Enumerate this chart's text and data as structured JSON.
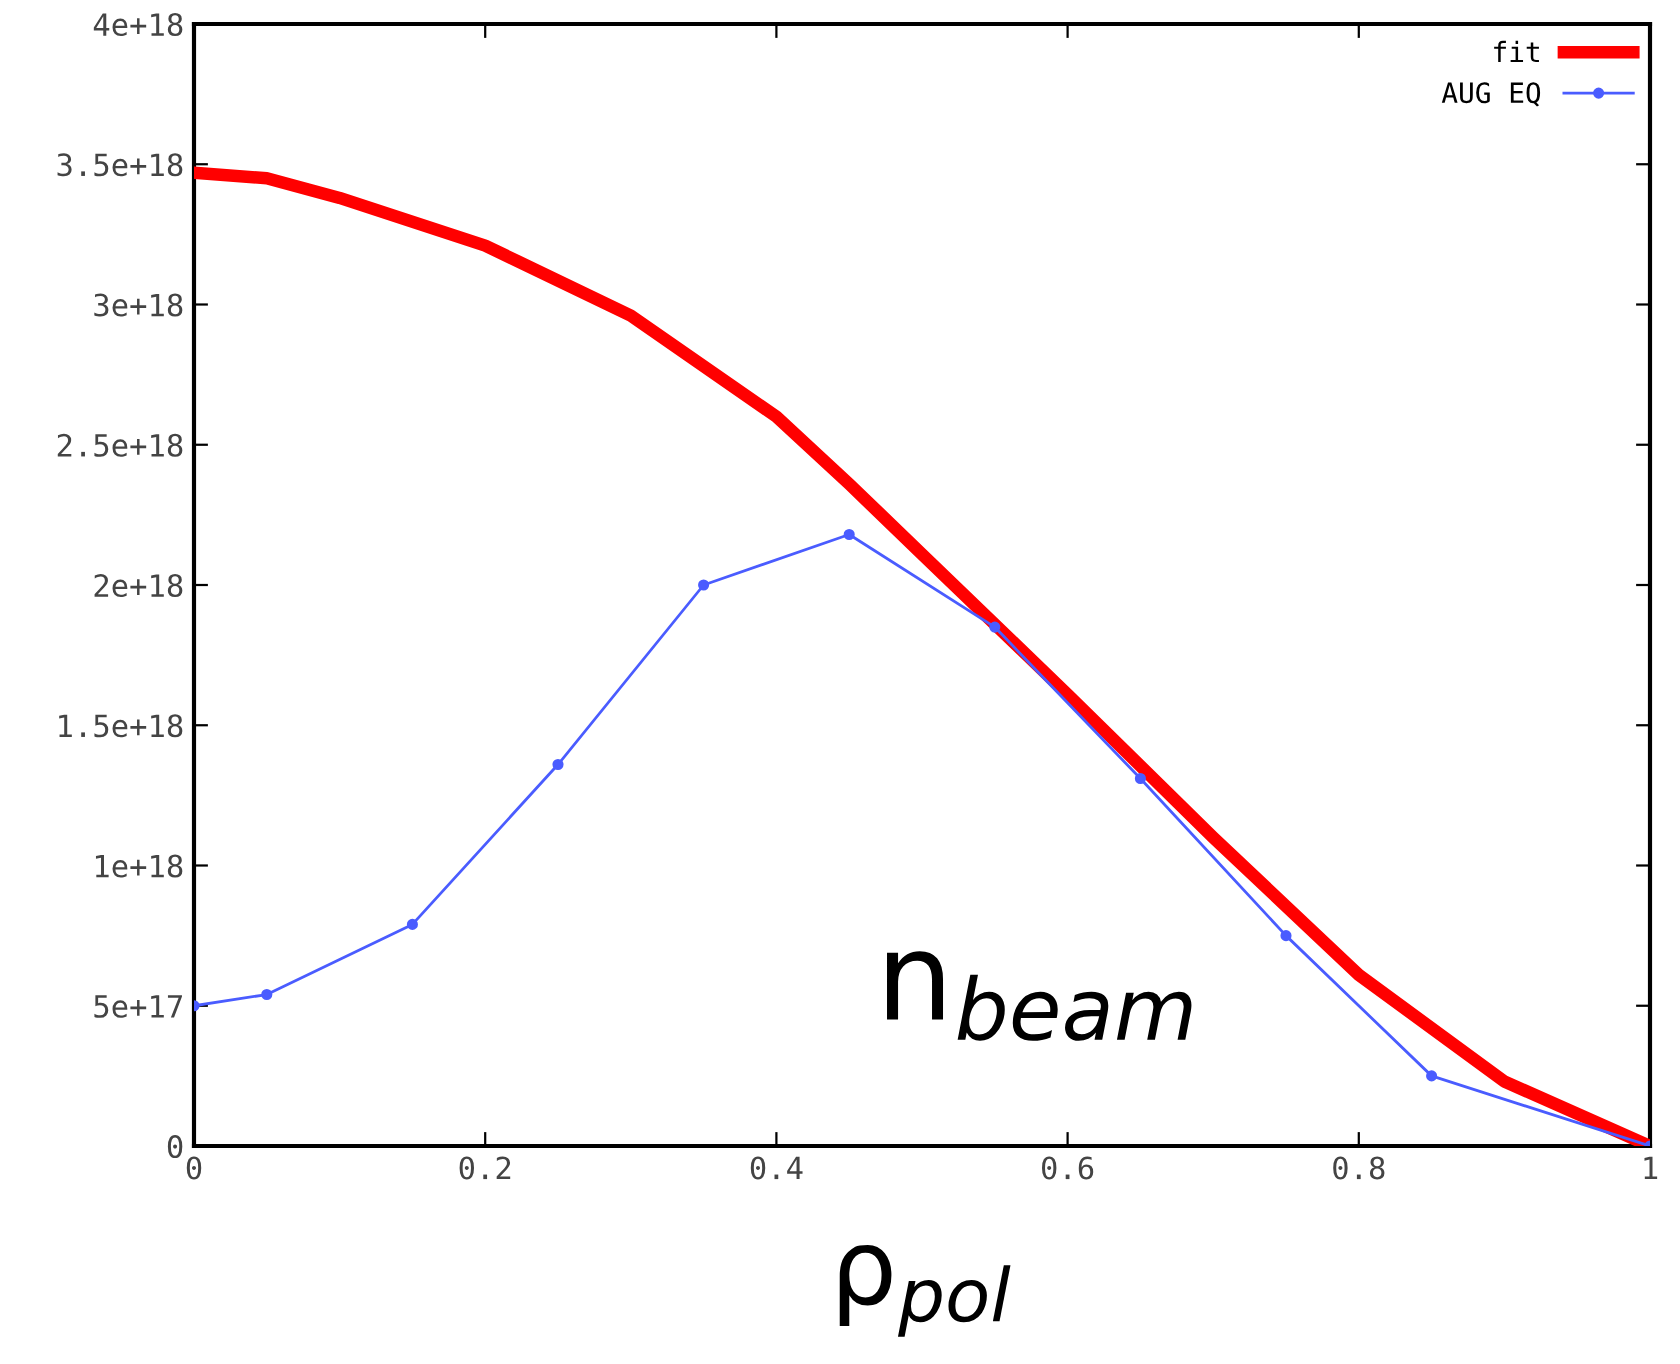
{
  "chart_data": {
    "type": "line",
    "xlabel": "ρ$_{pol}$",
    "annotations": [
      "n$_{beam}$"
    ],
    "series": [
      {
        "name": "fit",
        "color": "#ff0000",
        "marker": "none",
        "x": [
          0,
          0.05,
          0.1,
          0.2,
          0.3,
          0.4,
          0.45,
          0.5,
          0.6,
          0.7,
          0.8,
          0.9,
          1.0
        ],
        "values": [
          3.47e+18,
          3.45e+18,
          3.38e+18,
          3.21e+18,
          2.96e+18,
          2.6e+18,
          2.36e+18,
          2.11e+18,
          1.61e+18,
          1.1e+18,
          6.1e+17,
          2.3e+17,
          0
        ]
      },
      {
        "name": "AUG EQ",
        "color": "#4a5cff",
        "marker": "circle",
        "x": [
          0,
          0.05,
          0.15,
          0.25,
          0.35,
          0.45,
          0.55,
          0.65,
          0.75,
          0.85,
          1.0
        ],
        "values": [
          5e+17,
          5.4e+17,
          7.9e+17,
          1.36e+18,
          2e+18,
          2.18e+18,
          1.85e+18,
          1.31e+18,
          7.5e+17,
          2.5e+17,
          0
        ]
      }
    ],
    "xlim": [
      0,
      1
    ],
    "xticks": [
      0,
      {
        "value": 0.2,
        "label": "0.2"
      },
      {
        "value": 0.4,
        "label": "0.4"
      },
      {
        "value": 0.6,
        "label": "0.6"
      },
      {
        "value": 0.8,
        "label": "0.8"
      },
      1
    ],
    "ylim": [
      0,
      4e+18
    ],
    "yticks": [
      0,
      {
        "value": 5e+17,
        "label": "5e+17"
      },
      {
        "value": 1e+18,
        "label": "1e+18"
      },
      {
        "value": 1.5e+18,
        "label": "1.5e+18"
      },
      {
        "value": 2e+18,
        "label": "2e+18"
      },
      {
        "value": 2.5e+18,
        "label": "2.5e+18"
      },
      {
        "value": 3e+18,
        "label": "3e+18"
      },
      {
        "value": 3.5e+18,
        "label": "3.5e+18"
      },
      {
        "value": 4e+18,
        "label": "4e+18"
      }
    ],
    "grid": false,
    "legend": "top right",
    "line_style": "solid"
  }
}
